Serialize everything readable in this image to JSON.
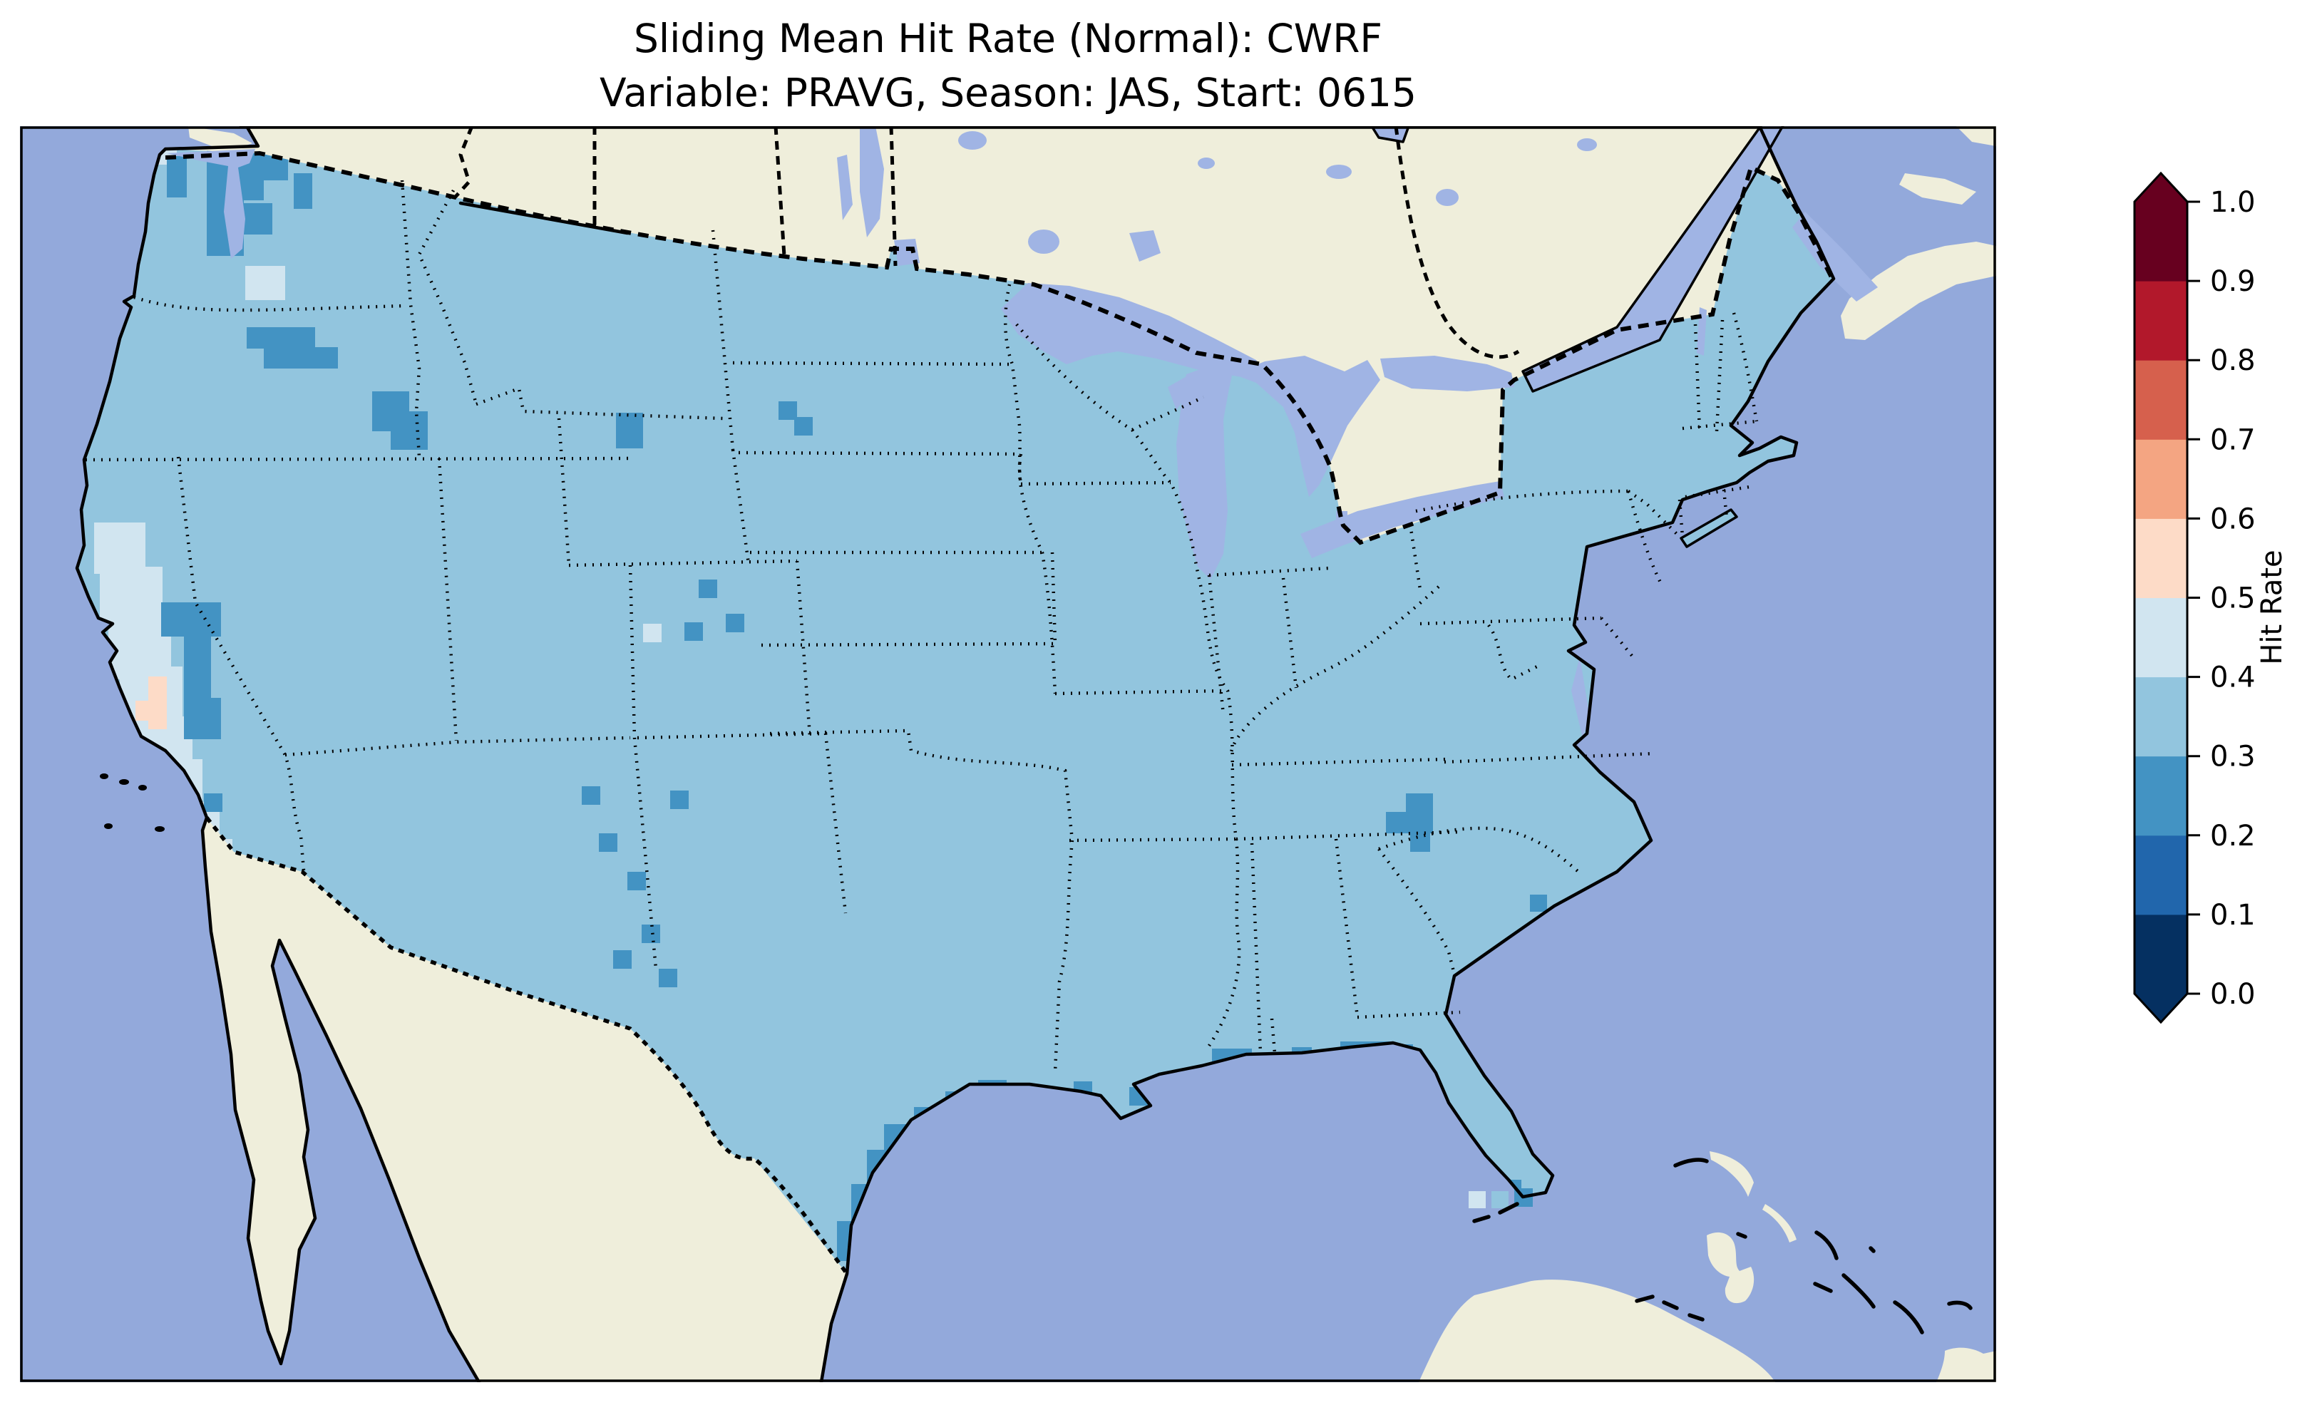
{
  "figure": {
    "title_line1": "Sliding Mean Hit Rate (Normal): CWRF",
    "title_line2": "Variable: PRAVG, Season: JAS, Start: 0615"
  },
  "chart_data": {
    "type": "heatmap",
    "title": "Sliding Mean Hit Rate (Normal): CWRF",
    "subtitle": "Variable: PRAVG, Season: JAS, Start: 0615",
    "metric": "Sliding Mean Hit Rate (Normal)",
    "model": "CWRF",
    "variable": "PRAVG",
    "season": "JAS",
    "start": "0615",
    "map_region": "Continental United States gridded verification map (Lambert-conformal style projection, no axis ticks)",
    "legend_position": "right vertical colorbar",
    "grid": "off",
    "colorbar": {
      "label": "Hit Rate",
      "orientation": "vertical",
      "extend": "both",
      "ticks": [
        "0.0",
        "0.1",
        "0.2",
        "0.3",
        "0.4",
        "0.5",
        "0.6",
        "0.7",
        "0.8",
        "0.9",
        "1.0"
      ],
      "bin_edges": [
        0.0,
        0.1,
        0.2,
        0.3,
        0.4,
        0.5,
        0.6,
        0.7,
        0.8,
        0.9,
        1.0
      ],
      "bin_colors": [
        "#053061",
        "#2166ac",
        "#4393c3",
        "#92c5de",
        "#d1e5f0",
        "#fddbc7",
        "#f4a582",
        "#d6604d",
        "#b2182b",
        "#67001f"
      ],
      "under_arrow_color": "#053061",
      "over_arrow_color": "#67001f"
    },
    "colors": {
      "ocean": "#93a9db",
      "lake": "#a0b4e4",
      "land": "#efeedb",
      "coastline": "#000000",
      "bin2": "#4393c3",
      "bin3": "#92c5de",
      "bin4": "#d1e5f0",
      "bin5": "#fddbc7",
      "figure_background": "#ffffff"
    },
    "observed_values": {
      "dominant_bin": "0.3-0.4",
      "regions": [
        {
          "region": "Most of the continental U.S.",
          "hit_rate": "0.3-0.4"
        },
        {
          "region": "Washington Cascades / Olympic Mountains",
          "hit_rate": "0.2-0.3"
        },
        {
          "region": "Northeast Oregon / Blue Mountains",
          "hit_rate": "0.2-0.3"
        },
        {
          "region": "Central Idaho mountains",
          "hit_rate": "0.2-0.3"
        },
        {
          "region": "Sierra Nevada (California)",
          "hit_rate": "0.2-0.3"
        },
        {
          "region": "California Central Valley and central coast",
          "hit_rate": "0.4-0.5"
        },
        {
          "region": "Small area of central California",
          "hit_rate": "0.5-0.6"
        },
        {
          "region": "Scattered cells in Colorado Rockies, Utah, Arizona and New Mexico",
          "hit_rate": "0.2-0.3"
        },
        {
          "region": "Black Hills area",
          "hit_rate": "0.2-0.3"
        },
        {
          "region": "Texas Gulf Coast strip",
          "hit_rate": "0.2-0.3"
        },
        {
          "region": "Florida Gulf Coast and Panhandle coast",
          "hit_rate": "0.2-0.3"
        },
        {
          "region": "Georgia / South Carolina border cluster",
          "hit_rate": "0.2-0.3"
        },
        {
          "region": "Few cells near the Florida Keys",
          "hit_rate": "0.4-0.5"
        }
      ]
    }
  }
}
